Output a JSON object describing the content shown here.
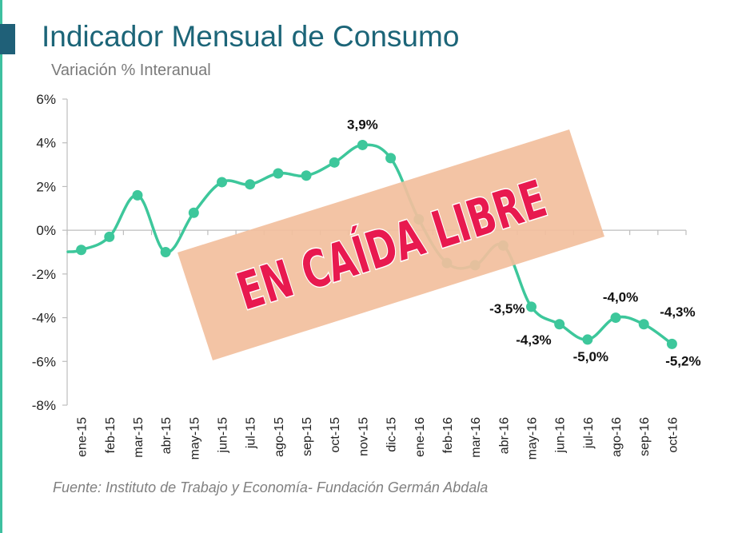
{
  "title": "Indicador Mensual de Consumo",
  "subtitle": "Variación % Interanual",
  "source": "Fuente: Instituto de Trabajo y Economía- Fundación Germán Abdala",
  "stamp": "EN CAÍDA LIBRE",
  "colors": {
    "line": "#3dc79b",
    "title": "#1c6578",
    "stamp_band": "#f2bf9d",
    "stamp_text": "#e8194f"
  },
  "chart_data": {
    "type": "line",
    "categories": [
      "ene-15",
      "feb-15",
      "mar-15",
      "abr-15",
      "may-15",
      "jun-15",
      "jul-15",
      "ago-15",
      "sep-15",
      "oct-15",
      "nov-15",
      "dic-15",
      "ene-16",
      "feb-16",
      "mar-16",
      "abr-16",
      "may-16",
      "jun-16",
      "jul-16",
      "ago-16",
      "sep-16",
      "oct-16"
    ],
    "values": [
      -0.9,
      -0.3,
      1.6,
      -1.0,
      0.8,
      2.2,
      2.1,
      2.6,
      2.5,
      3.1,
      3.9,
      3.3,
      0.5,
      -1.5,
      -1.6,
      -0.7,
      -3.5,
      -4.3,
      -5.0,
      -4.0,
      -4.3,
      -5.2
    ],
    "data_labels": [
      {
        "index": 10,
        "text": "3,9%"
      },
      {
        "index": 16,
        "text": "-3,5%"
      },
      {
        "index": 17,
        "text": "-4,3%"
      },
      {
        "index": 18,
        "text": "-5,0%"
      },
      {
        "index": 19,
        "text": "-4,0%"
      },
      {
        "index": 20,
        "text": "-4,3%"
      },
      {
        "index": 21,
        "text": "-5,2%"
      }
    ],
    "ylim": [
      -8,
      6
    ],
    "yticks": [
      6,
      4,
      2,
      0,
      -2,
      -4,
      -6,
      -8
    ],
    "ytick_labels": [
      "6%",
      "4%",
      "2%",
      "0%",
      "-2%",
      "-4%",
      "-6%",
      "-8%"
    ],
    "grid": false,
    "legend": "none"
  }
}
